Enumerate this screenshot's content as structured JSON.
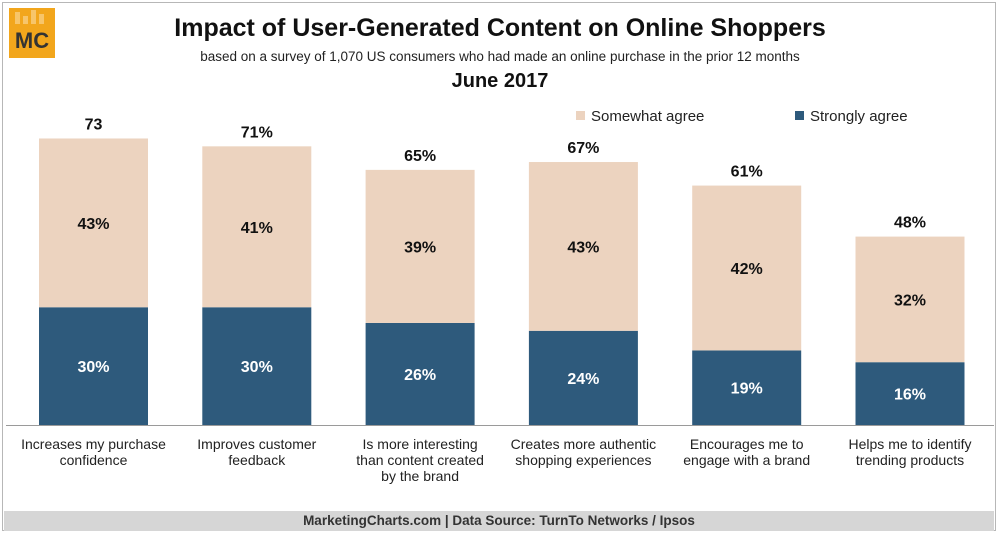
{
  "logo": {
    "text": "MC",
    "bg_color": "#f2a61c",
    "text_color": "#333333"
  },
  "header": {
    "title": "Impact of User-Generated Content on Online Shoppers",
    "subtitle": "based on a survey of 1,070 US consumers who had made an online purchase in the prior 12 months",
    "date": "June 2017"
  },
  "footer": {
    "text": "MarketingCharts.com | Data Source: TurnTo Networks / Ipsos"
  },
  "chart_data": {
    "type": "bar",
    "stacked": true,
    "categories": [
      [
        "Increases my purchase",
        "confidence"
      ],
      [
        "Improves customer",
        "feedback"
      ],
      [
        "Is more interesting",
        "than content created",
        "by the brand"
      ],
      [
        "Creates more authentic",
        "shopping experiences"
      ],
      [
        "Encourages me to",
        "engage with a brand"
      ],
      [
        "Helps me to identify",
        "trending products"
      ]
    ],
    "series": [
      {
        "name": "Strongly agree",
        "color": "#2e5a7c",
        "label_color": "#ffffff",
        "values": [
          30,
          30,
          26,
          24,
          19,
          16
        ],
        "labels": [
          "30%",
          "30%",
          "26%",
          "24%",
          "19%",
          "16%"
        ]
      },
      {
        "name": "Somewhat agree",
        "color": "#ecd3bf",
        "label_color": "#111111",
        "values": [
          43,
          41,
          39,
          43,
          42,
          32
        ],
        "labels": [
          "43%",
          "41%",
          "39%",
          "43%",
          "42%",
          "32%"
        ]
      }
    ],
    "totals": [
      73,
      71,
      65,
      67,
      61,
      48
    ],
    "total_labels": [
      "73",
      "71%",
      "65%",
      "67%",
      "61%",
      "48%"
    ],
    "legend_order": [
      "Somewhat agree",
      "Strongly agree"
    ],
    "legend_position": "top-right",
    "ylim": [
      0,
      80
    ],
    "grid": false,
    "xlabel": "",
    "ylabel": ""
  }
}
